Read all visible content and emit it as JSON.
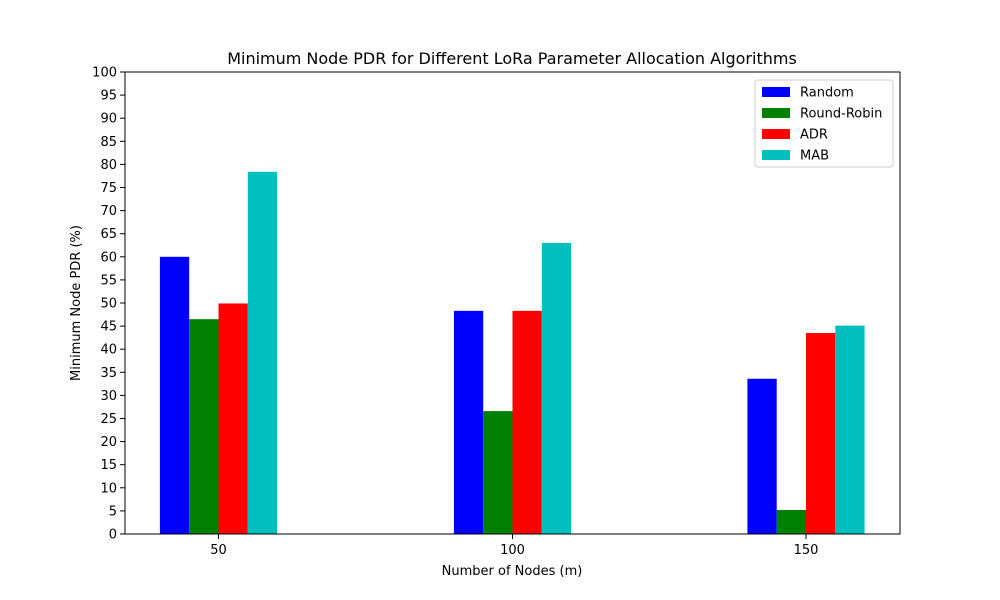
{
  "chart_data": {
    "type": "bar",
    "title": "Minimum Node PDR for Different LoRa Parameter Allocation Algorithms",
    "xlabel": "Number of Nodes (m)",
    "ylabel": "Minimum Node PDR (%)",
    "categories": [
      "50",
      "100",
      "150"
    ],
    "ylim": [
      0,
      100
    ],
    "yticks": [
      0,
      5,
      10,
      15,
      20,
      25,
      30,
      35,
      40,
      45,
      50,
      55,
      60,
      65,
      70,
      75,
      80,
      85,
      90,
      95,
      100
    ],
    "grid": false,
    "legend_position": "top-right",
    "series": [
      {
        "name": "Random",
        "color": "#0000ff",
        "values": [
          60.0,
          48.3,
          33.6
        ]
      },
      {
        "name": "Round-Robin",
        "color": "#008000",
        "values": [
          46.5,
          26.6,
          5.2
        ]
      },
      {
        "name": "ADR",
        "color": "#ff0000",
        "values": [
          49.9,
          48.3,
          43.5
        ]
      },
      {
        "name": "MAB",
        "color": "#00bfbf",
        "values": [
          78.4,
          63.0,
          45.1
        ]
      }
    ]
  }
}
